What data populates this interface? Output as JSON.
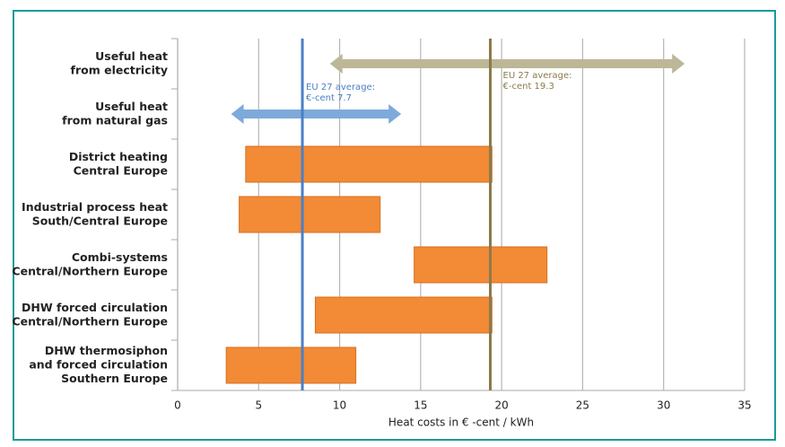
{
  "chart_data": {
    "type": "range-bar",
    "categories": [
      [
        "Useful heat",
        "from electricity"
      ],
      [
        "Useful heat",
        "from natural gas"
      ],
      [
        "District heating",
        "Central Europe"
      ],
      [
        "Industrial process heat",
        "South/Central Europe"
      ],
      [
        "Combi-systems",
        "Central/Northern Europe"
      ],
      [
        "DHW forced circulation",
        "Central/Northern Europe"
      ],
      [
        "DHW thermosiphon",
        "and forced circulation",
        "Southern Europe"
      ]
    ],
    "low": [
      9.4,
      3.3,
      4.2,
      3.8,
      14.6,
      8.5,
      3.0
    ],
    "high": [
      31.3,
      13.8,
      19.4,
      12.5,
      22.8,
      19.4,
      11.0
    ],
    "shapes": [
      "arrow",
      "arrow",
      "bar",
      "bar",
      "bar",
      "bar",
      "bar"
    ],
    "colors": [
      "#bcb796",
      "#7eaadb",
      "#f28a36",
      "#f28a36",
      "#f28a36",
      "#f28a36",
      "#f28a36"
    ],
    "reference_lines": [
      {
        "value": 7.7,
        "label": [
          "EU 27 average:",
          "€-cent 7.7"
        ],
        "color": "#4a7fc4"
      },
      {
        "value": 19.3,
        "label": [
          "EU 27 average:",
          "€-cent 19.3"
        ],
        "color": "#8c7a4a"
      }
    ],
    "xlabel": "Heat costs in € -cent / kWh",
    "xlim": [
      0,
      35
    ],
    "xticks": [
      0,
      5,
      10,
      15,
      20,
      25,
      30,
      35
    ],
    "grid": true
  }
}
